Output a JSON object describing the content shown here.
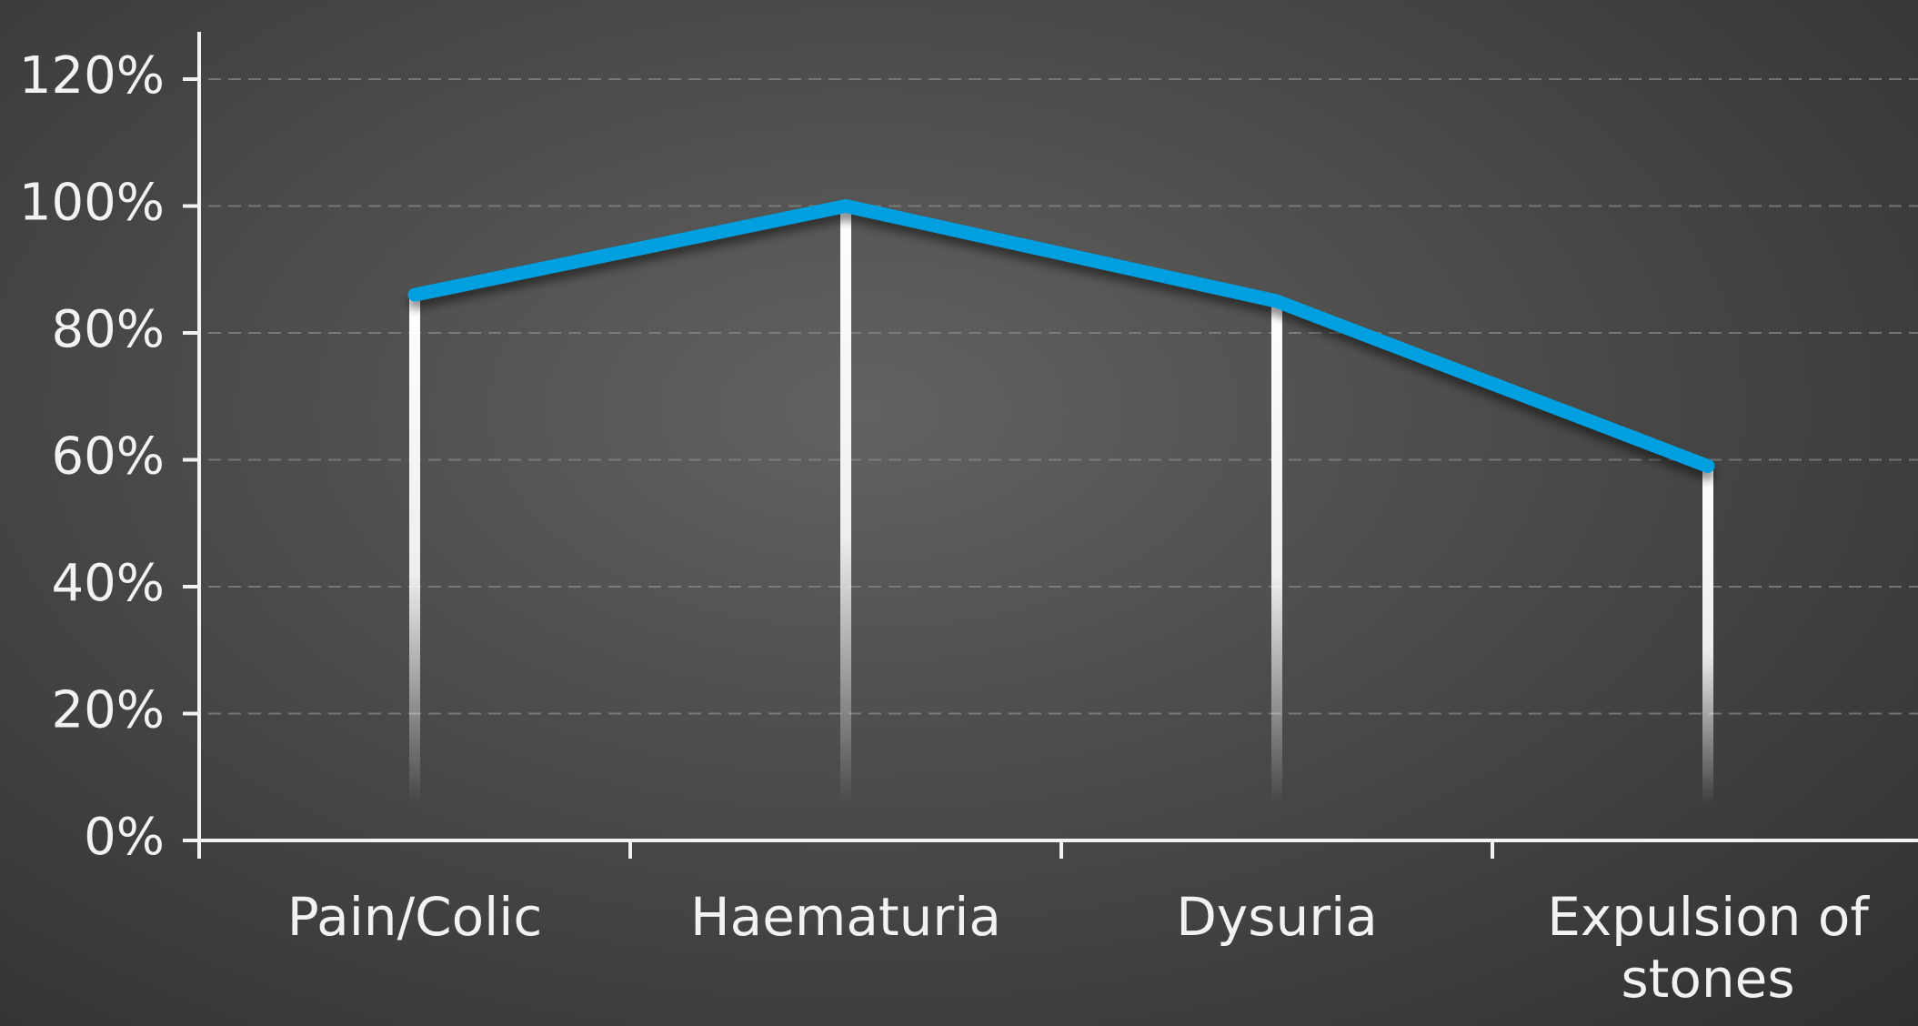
{
  "chart_data": {
    "type": "line",
    "categories": [
      "Pain/Colic",
      "Haematuria",
      "Dysuria",
      "Expulsion of stones"
    ],
    "values": [
      86,
      100,
      85,
      59
    ],
    "color": "#009fe0",
    "ylim": [
      0,
      120
    ],
    "yticks": [
      {
        "value": 0,
        "label": "0%"
      },
      {
        "value": 20,
        "label": "20%"
      },
      {
        "value": 40,
        "label": "40%"
      },
      {
        "value": 60,
        "label": "60%"
      },
      {
        "value": 80,
        "label": "80%"
      },
      {
        "value": 100,
        "label": "100%"
      },
      {
        "value": 120,
        "label": "120%"
      }
    ],
    "grid": true
  }
}
